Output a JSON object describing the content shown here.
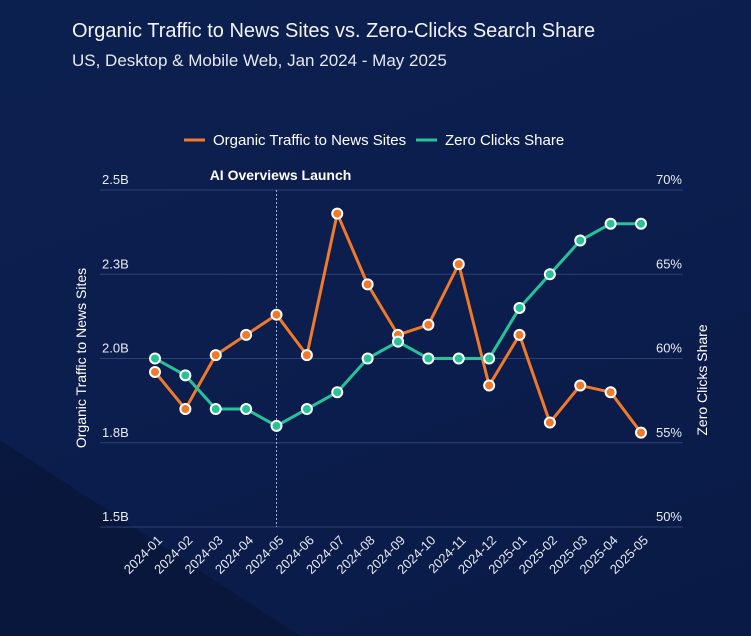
{
  "title": "Organic Traffic to News Sites vs. Zero-Clicks Search Share",
  "subtitle": "US, Desktop & Mobile Web, Jan 2024 - May 2025",
  "chart_data": {
    "type": "line",
    "title": "Organic Traffic to News Sites vs. Zero-Clicks Search Share",
    "subtitle": "US, Desktop & Mobile Web, Jan 2024 - May 2025",
    "categories": [
      "2024-01",
      "2024-02",
      "2024-03",
      "2024-04",
      "2024-05",
      "2024-06",
      "2024-07",
      "2024-08",
      "2024-09",
      "2024-10",
      "2024-11",
      "2024-12",
      "2025-01",
      "2025-02",
      "2025-03",
      "2025-04",
      "2025-05"
    ],
    "ylabel_left": "Organic Traffic to News Sites",
    "ylabel_right": "Zero Clicks Share",
    "ylim_left": [
      1.5,
      2.5
    ],
    "ylim_right": [
      50,
      70
    ],
    "yticks_left": [
      "1.5B",
      "1.8B",
      "2.0B",
      "2.3B",
      "2.5B"
    ],
    "yticks_right": [
      "50%",
      "55%",
      "60%",
      "65%",
      "70%"
    ],
    "grid": true,
    "legend_position": "top-center",
    "annotation": {
      "label": "AI Overviews Launch",
      "at": "2024-05"
    },
    "series": [
      {
        "name": "Organic Traffic to News Sites",
        "axis": "left",
        "color": "#f07a2a",
        "values": [
          1.96,
          1.85,
          2.01,
          2.07,
          2.13,
          2.01,
          2.43,
          2.22,
          2.07,
          2.1,
          2.28,
          1.92,
          2.07,
          1.81,
          1.92,
          1.9,
          1.78
        ]
      },
      {
        "name": "Zero Clicks Share",
        "axis": "right",
        "color": "#26c29a",
        "values": [
          60,
          59,
          57,
          57,
          56,
          57,
          58,
          60,
          61,
          60,
          60,
          60,
          63,
          65,
          67,
          68,
          68
        ]
      }
    ]
  }
}
